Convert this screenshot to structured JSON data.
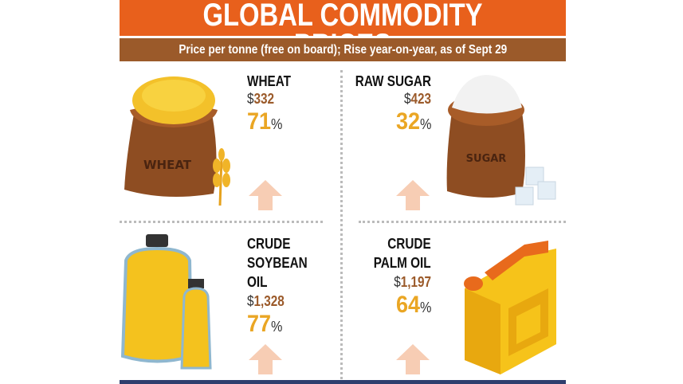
{
  "title": "GLOBAL COMMODITY PRICES",
  "subtitle": "Price per tonne (free on board); Rise year-on-year, as of Sept 29",
  "items": [
    {
      "name": "WHEAT",
      "currency": "$",
      "price": "332",
      "rise": "71",
      "unit": "%",
      "bag_label": "WHEAT",
      "icon": "wheat-sack-icon"
    },
    {
      "name": "RAW SUGAR",
      "currency": "$",
      "price": "423",
      "rise": "32",
      "unit": "%",
      "bag_label": "SUGAR",
      "icon": "sugar-sack-icon"
    },
    {
      "name_lines": [
        "CRUDE",
        "SOYBEAN",
        "OIL"
      ],
      "currency": "$",
      "price": "1,328",
      "rise": "77",
      "unit": "%",
      "icon": "oil-bottles-icon"
    },
    {
      "name_lines": [
        "CRUDE",
        "PALM OIL"
      ],
      "currency": "$",
      "price": "1,197",
      "rise": "64",
      "unit": "%",
      "icon": "jerry-can-icon"
    }
  ],
  "colors": {
    "banner": "#e8601c",
    "subbar": "#9b5a2a",
    "rise": "#eaa624",
    "arrow": "#f7cdb4",
    "bottom": "#2f3e6e"
  }
}
